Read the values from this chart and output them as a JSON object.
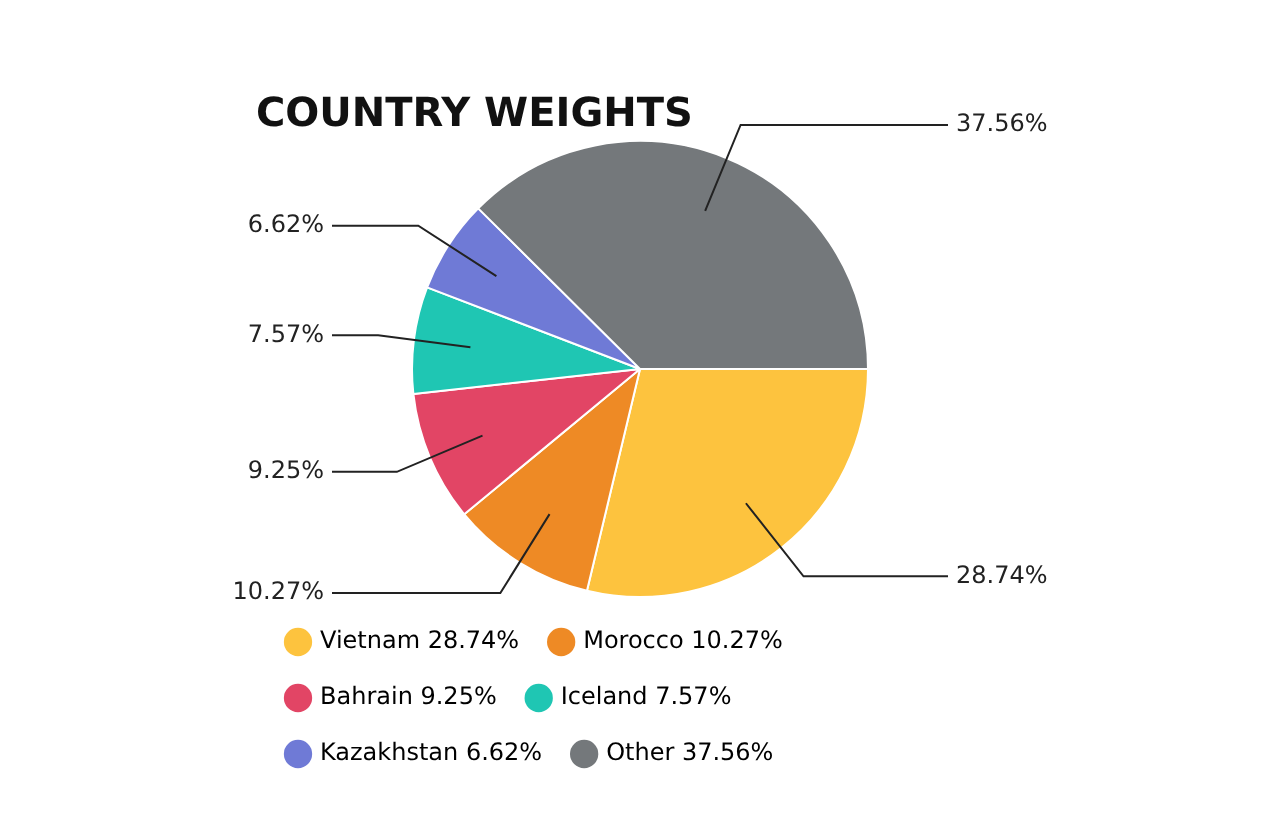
{
  "chart_data": {
    "type": "pie",
    "title": "COUNTRY WEIGHTS",
    "categories": [
      "Vietnam",
      "Morocco",
      "Bahrain",
      "Iceland",
      "Kazakhstan",
      "Other"
    ],
    "values": [
      28.74,
      10.27,
      9.25,
      7.57,
      6.62,
      37.56
    ],
    "value_labels": [
      "28.74%",
      "10.27%",
      "9.25%",
      "7.57%",
      "6.62%",
      "37.56%"
    ],
    "colors": [
      "#fdc33e",
      "#ee8a25",
      "#e24565",
      "#1fc6b3",
      "#6f7ad6",
      "#74787b"
    ],
    "legend": "bottom"
  }
}
